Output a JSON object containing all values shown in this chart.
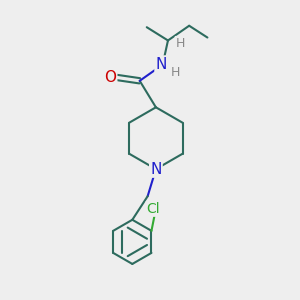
{
  "bg_color": "#eeeeee",
  "bond_color": "#2d6b5e",
  "N_color": "#2020cc",
  "O_color": "#cc0000",
  "Cl_color": "#33aa33",
  "H_color": "#888888",
  "line_width": 1.5,
  "font_size": 10,
  "fig_w": 3.0,
  "fig_h": 3.0,
  "dpi": 100,
  "xlim": [
    0,
    10
  ],
  "ylim": [
    0,
    10
  ]
}
